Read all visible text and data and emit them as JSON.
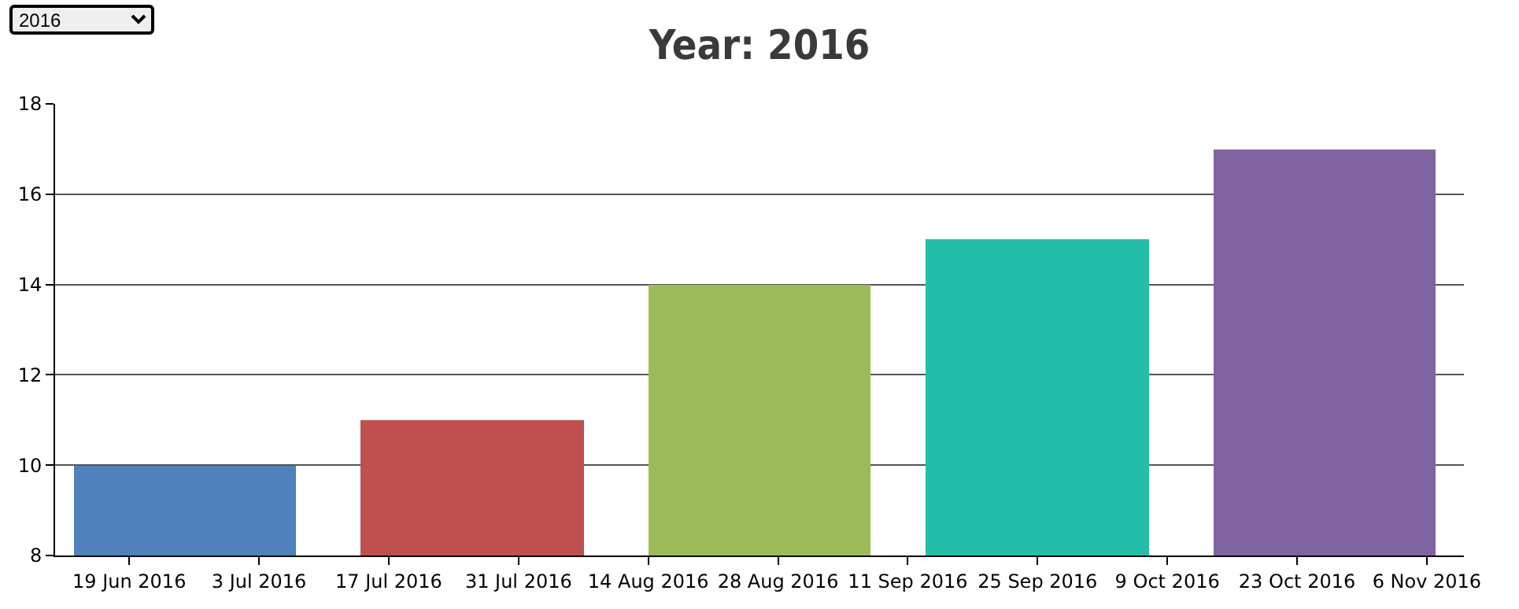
{
  "chart_data": {
    "type": "bar",
    "title": "Year: 2016",
    "annotations": [
      "2016"
    ],
    "x": [
      "2016-06-25",
      "2016-07-26",
      "2016-08-26",
      "2016-09-25",
      "2016-10-26"
    ],
    "values": [
      10,
      11,
      14,
      15,
      17
    ],
    "colors": [
      "#4f81bc",
      "#c0504e",
      "#9bbb58",
      "#23bfaa",
      "#8064a1"
    ],
    "xlim": [
      "2016-06-11",
      "2016-11-10"
    ],
    "xticks": [
      {
        "value": "2016-06-19",
        "label": "19 Jun 2016"
      },
      {
        "value": "2016-07-03",
        "label": "3 Jul 2016"
      },
      {
        "value": "2016-07-17",
        "label": "17 Jul 2016"
      },
      {
        "value": "2016-07-31",
        "label": "31 Jul 2016"
      },
      {
        "value": "2016-08-14",
        "label": "14 Aug 2016"
      },
      {
        "value": "2016-08-28",
        "label": "28 Aug 2016"
      },
      {
        "value": "2016-09-11",
        "label": "11 Sep 2016"
      },
      {
        "value": "2016-09-25",
        "label": "25 Sep 2016"
      },
      {
        "value": "2016-10-09",
        "label": "9 Oct 2016"
      },
      {
        "value": "2016-10-23",
        "label": "23 Oct 2016"
      },
      {
        "value": "2016-11-06",
        "label": "6 Nov 2016"
      }
    ],
    "ylim": [
      8,
      18
    ],
    "yticks": [
      8,
      10,
      12,
      14,
      16,
      18
    ],
    "grid": "y",
    "legend": false
  }
}
